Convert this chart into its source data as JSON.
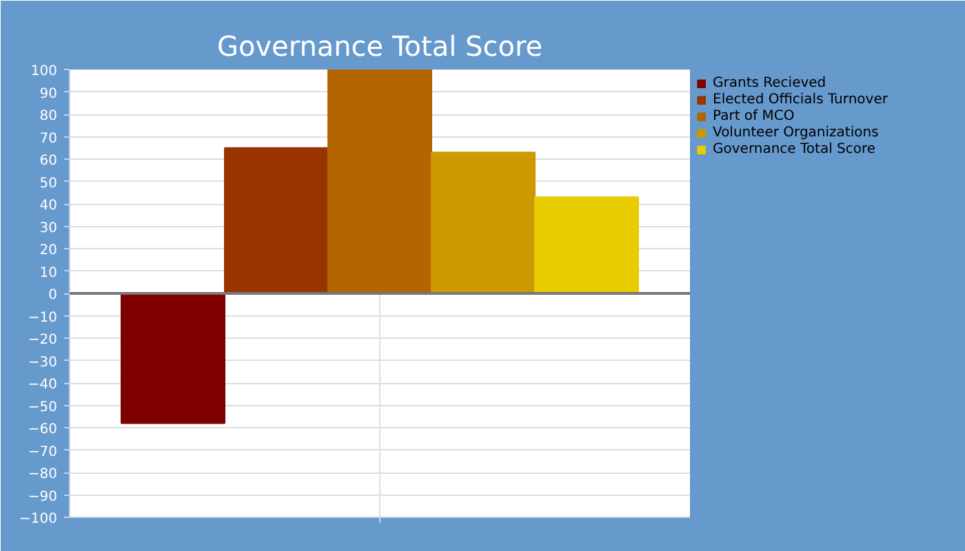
{
  "chart_data": {
    "type": "bar",
    "title": "Governance Total Score",
    "categories": [
      null
    ],
    "series": [
      {
        "name": "Grants Recieved",
        "color": "#800000",
        "values": [
          -58
        ]
      },
      {
        "name": "Elected Officials Turnover",
        "color": "#993300",
        "values": [
          65
        ]
      },
      {
        "name": "Part of MCO",
        "color": "#b36600",
        "values": [
          100
        ]
      },
      {
        "name": "Volunteer Organizations",
        "color": "#cc9900",
        "values": [
          63
        ]
      },
      {
        "name": "Governance Total Score",
        "color": "#e6cc00",
        "values": [
          43
        ]
      }
    ],
    "ylim": [
      -100,
      100
    ],
    "yticks": [
      -100,
      -90,
      -80,
      -70,
      -60,
      -50,
      -40,
      -30,
      -20,
      -10,
      0,
      10,
      20,
      30,
      40,
      50,
      60,
      70,
      80,
      90,
      100
    ],
    "grid": true,
    "legend": "right",
    "ref_lines": [
      {
        "axis": "y",
        "value": 0,
        "color": "#777777"
      }
    ]
  }
}
